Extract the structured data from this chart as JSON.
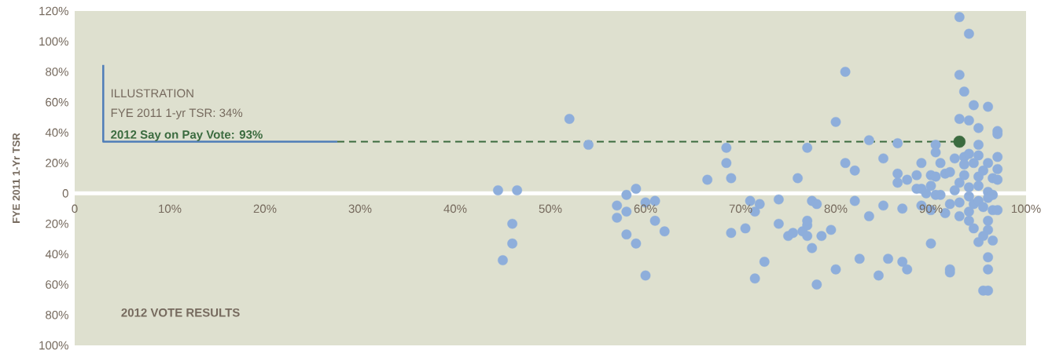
{
  "chart_data": {
    "type": "scatter",
    "xlabel": "2012 VOTE RESULTS",
    "ylabel": "FYE 2011 1-Yr TSR",
    "annotations": [
      "ILLUSTRATION",
      "FYE 2011 1-yr TSR:  34%",
      "2012 Say on Pay Vote:  93%"
    ],
    "xlim": [
      0,
      100
    ],
    "xticks": [
      {
        "value": 0,
        "label": "0"
      },
      {
        "value": 10,
        "label": "10%"
      },
      {
        "value": 20,
        "label": "20%"
      },
      {
        "value": 30,
        "label": "30%"
      },
      {
        "value": 40,
        "label": "40%"
      },
      {
        "value": 50,
        "label": "50%"
      },
      {
        "value": 60,
        "label": "60%"
      },
      {
        "value": 70,
        "label": "70%"
      },
      {
        "value": 80,
        "label": "80%"
      },
      {
        "value": 90,
        "label": "90%"
      },
      {
        "value": 100,
        "label": "100%"
      }
    ],
    "ylim": [
      -100,
      120
    ],
    "yticks": [
      {
        "value": 120,
        "label": "120%"
      },
      {
        "value": 100,
        "label": "100%"
      },
      {
        "value": 80,
        "label": "80%"
      },
      {
        "value": 60,
        "label": "60%"
      },
      {
        "value": 40,
        "label": "40%"
      },
      {
        "value": 20,
        "label": "20%"
      },
      {
        "value": 0,
        "label": "0"
      },
      {
        "value": -20,
        "label": "20%"
      },
      {
        "value": -40,
        "label": "40%"
      },
      {
        "value": -60,
        "label": "60%"
      },
      {
        "value": -80,
        "label": "80%"
      },
      {
        "value": -100,
        "label": "100%"
      }
    ],
    "series": [
      {
        "type": "scatter",
        "color": "#8eaedb",
        "marker": "circle",
        "x": [
          44.5,
          45,
          46,
          46,
          46.5,
          52,
          54,
          57,
          57,
          58,
          58,
          58,
          59,
          59,
          60,
          60,
          61,
          61,
          62,
          66.5,
          68.5,
          68.5,
          69,
          69,
          70.5,
          71,
          71.5,
          71.5,
          72,
          72.5,
          74,
          74,
          75,
          75.5,
          76,
          76.5,
          77,
          77,
          77,
          77,
          77.5,
          77.5,
          78,
          78,
          78.5,
          79.5,
          80,
          80,
          81,
          81,
          82,
          82,
          82.5,
          83.5,
          83.5,
          84.5,
          85,
          85,
          85.5,
          86.5,
          86.5,
          86.5,
          87,
          87,
          87.5,
          87.5,
          88.5,
          88.5,
          89,
          89,
          89,
          89.5,
          90,
          90,
          90,
          90,
          90.5,
          90.5,
          90.5,
          90.5,
          91,
          91,
          91.5,
          91.5,
          92,
          92,
          92,
          92,
          92.5,
          92.5,
          93,
          93,
          93,
          93,
          93,
          93,
          93.5,
          93.5,
          93.5,
          93.5,
          94,
          94,
          94,
          94,
          94,
          94,
          94,
          94.5,
          94.5,
          94.5,
          94.5,
          95,
          95,
          95,
          95,
          95,
          95,
          95,
          95.5,
          95.5,
          95.5,
          95.5,
          96,
          96,
          96,
          96,
          96,
          96,
          96,
          96,
          96,
          96.5,
          96.5,
          96.5,
          96.5,
          97,
          97,
          97,
          97,
          97,
          97
        ],
        "values": [
          2,
          -44,
          -33,
          -20,
          2,
          49,
          32,
          -16,
          -8,
          -1,
          -27,
          -12,
          -33,
          3,
          -54,
          -6,
          -5,
          -18,
          -25,
          9,
          30,
          20,
          10,
          -26,
          -23,
          -5,
          -12,
          -56,
          -7,
          -45,
          -4,
          -20,
          -28,
          -26,
          10,
          -25,
          -21,
          30,
          -28,
          -18,
          -5,
          -36,
          -7,
          -60,
          -28,
          -24,
          47,
          -50,
          80,
          20,
          -5,
          15,
          -43,
          35,
          -15,
          -54,
          -8,
          23,
          -43,
          13,
          7,
          33,
          -10,
          -45,
          -50,
          9,
          12,
          3,
          -8,
          20,
          3,
          0,
          -11,
          12,
          -33,
          5,
          32,
          -1,
          27,
          11,
          20,
          -1,
          13,
          -13,
          14,
          -7,
          -50,
          -52,
          2,
          23,
          -15,
          116,
          78,
          7,
          -6,
          49,
          67,
          24,
          19,
          12,
          -12,
          48,
          105,
          26,
          4,
          -18,
          -2,
          20,
          58,
          -23,
          -7,
          11,
          25,
          -32,
          32,
          -5,
          43,
          5,
          15,
          -28,
          -64,
          -9,
          1,
          -18,
          -24,
          -42,
          57,
          20,
          -3,
          -50,
          -64,
          -11,
          -31,
          10,
          -1,
          41,
          24,
          9,
          -11,
          39,
          16
        ]
      },
      {
        "type": "scatter",
        "color": "#3b6b3f",
        "marker": "circle",
        "x": [
          93
        ],
        "values": [
          34
        ]
      },
      {
        "type": "line",
        "color": "#3b6b3f",
        "marker": "none",
        "line_style": "dashed",
        "x": [
          27.6,
          93
        ],
        "values": [
          34,
          34
        ]
      },
      {
        "type": "line",
        "color": "#4f7db8",
        "marker": "none",
        "line_style": "solid",
        "x": [
          3,
          3,
          27.6
        ],
        "values": [
          84.5,
          34,
          34
        ]
      }
    ]
  }
}
